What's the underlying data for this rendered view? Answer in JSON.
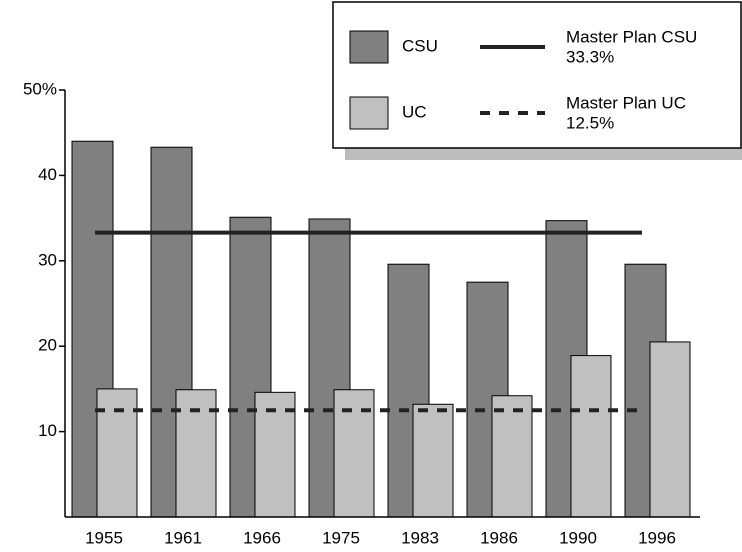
{
  "chart_data": {
    "type": "bar",
    "categories": [
      "1955",
      "1961",
      "1966",
      "1975",
      "1983",
      "1986",
      "1990",
      "1996"
    ],
    "series": [
      {
        "name": "CSU",
        "color": "#808080",
        "values": [
          44,
          43.3,
          35.1,
          34.9,
          29.6,
          27.5,
          34.7,
          29.6
        ]
      },
      {
        "name": "UC",
        "color": "#c0c0c0",
        "values": [
          15,
          14.9,
          14.6,
          14.9,
          13.2,
          14.2,
          18.9,
          20.5
        ]
      }
    ],
    "reference_lines": [
      {
        "name": "Master Plan CSU",
        "label": "33.3%",
        "value": 33.3,
        "style": "solid",
        "color": "#222222"
      },
      {
        "name": "Master Plan UC",
        "label": "12.5%",
        "value": 12.5,
        "style": "dashed",
        "color": "#222222"
      }
    ],
    "ylim": [
      0,
      50
    ],
    "yticks": [
      10,
      20,
      30,
      40,
      {
        "value": 50,
        "label": "50%"
      }
    ],
    "legend": "top-right"
  }
}
